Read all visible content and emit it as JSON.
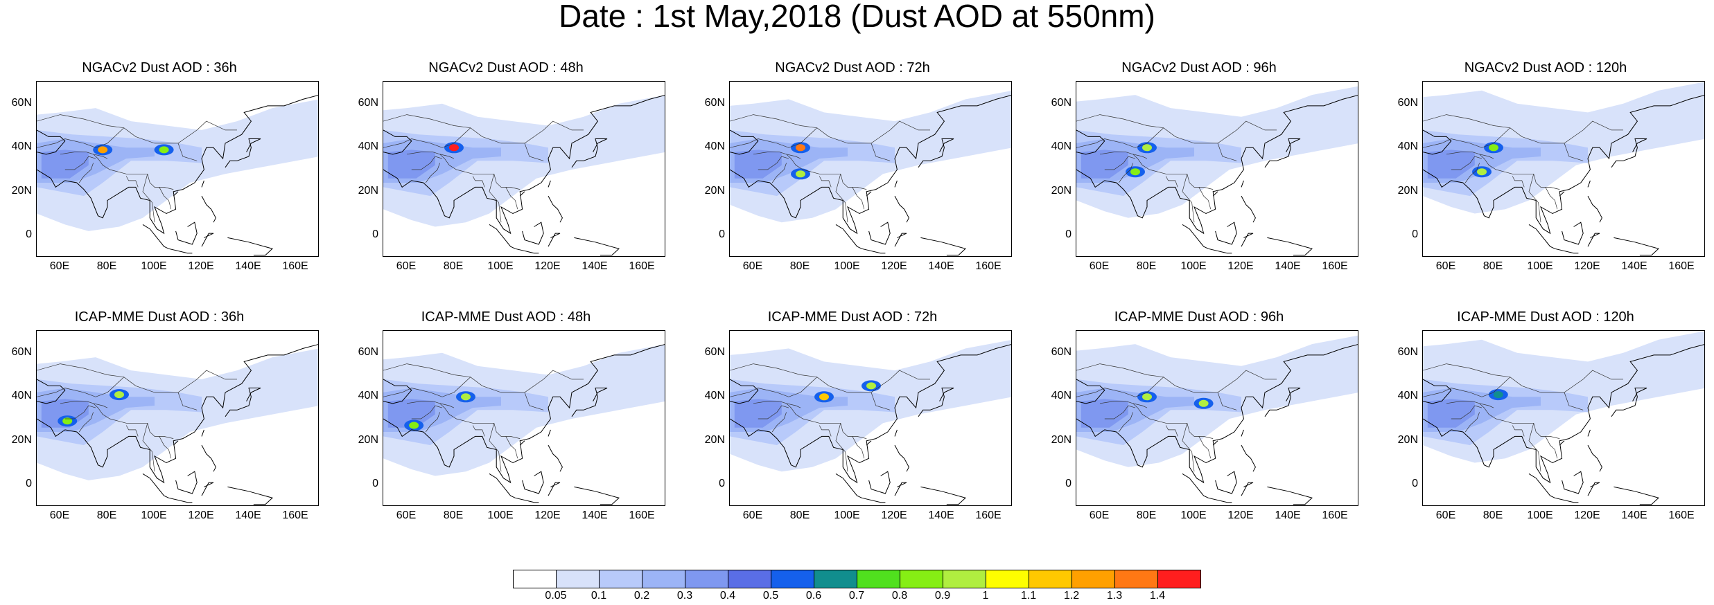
{
  "page": {
    "title": "Date : 1st May,2018 (Dust AOD at 550nm)"
  },
  "axes": {
    "lat_ticks": [
      "60N",
      "40N",
      "20N",
      "0"
    ],
    "lat_values": [
      60,
      40,
      20,
      0
    ],
    "lon_ticks": [
      "60E",
      "80E",
      "100E",
      "120E",
      "140E",
      "160E"
    ],
    "lon_values": [
      60,
      80,
      100,
      120,
      140,
      160
    ],
    "lon_range": [
      50,
      170
    ],
    "lat_range": [
      -10,
      70
    ]
  },
  "panels": [
    {
      "title": "NGACv2 Dust AOD : 36h",
      "hotspots": [
        {
          "lon": 78,
          "lat": 39,
          "level": 1.2
        },
        {
          "lon": 104,
          "lat": 39,
          "level": 0.8
        }
      ]
    },
    {
      "title": "NGACv2 Dust AOD : 48h",
      "hotspots": [
        {
          "lon": 80,
          "lat": 40,
          "level": 1.4
        }
      ]
    },
    {
      "title": "NGACv2 Dust AOD : 72h",
      "hotspots": [
        {
          "lon": 80,
          "lat": 40,
          "level": 1.3
        },
        {
          "lon": 80,
          "lat": 28,
          "level": 0.9
        }
      ]
    },
    {
      "title": "NGACv2 Dust AOD : 96h",
      "hotspots": [
        {
          "lon": 80,
          "lat": 40,
          "level": 0.9
        },
        {
          "lon": 75,
          "lat": 29,
          "level": 0.8
        }
      ]
    },
    {
      "title": "NGACv2 Dust AOD : 120h",
      "hotspots": [
        {
          "lon": 80,
          "lat": 40,
          "level": 0.8
        },
        {
          "lon": 75,
          "lat": 29,
          "level": 0.9
        }
      ]
    },
    {
      "title": "ICAP-MME Dust AOD : 36h",
      "hotspots": [
        {
          "lon": 85,
          "lat": 41,
          "level": 0.9
        },
        {
          "lon": 63,
          "lat": 29,
          "level": 0.8
        }
      ]
    },
    {
      "title": "ICAP-MME Dust AOD : 48h",
      "hotspots": [
        {
          "lon": 85,
          "lat": 40,
          "level": 0.9
        },
        {
          "lon": 63,
          "lat": 27,
          "level": 0.8
        }
      ]
    },
    {
      "title": "ICAP-MME Dust AOD : 72h",
      "hotspots": [
        {
          "lon": 90,
          "lat": 40,
          "level": 1.1
        },
        {
          "lon": 110,
          "lat": 45,
          "level": 0.9
        }
      ]
    },
    {
      "title": "ICAP-MME Dust AOD : 96h",
      "hotspots": [
        {
          "lon": 80,
          "lat": 40,
          "level": 0.9
        },
        {
          "lon": 104,
          "lat": 37,
          "level": 0.9
        }
      ]
    },
    {
      "title": "ICAP-MME Dust AOD : 120h",
      "hotspots": [
        {
          "lon": 82,
          "lat": 41,
          "level": 0.6
        }
      ]
    }
  ],
  "colorbar": {
    "labels": [
      "0.05",
      "0.1",
      "0.2",
      "0.3",
      "0.4",
      "0.5",
      "0.6",
      "0.7",
      "0.8",
      "0.9",
      "1",
      "1.1",
      "1.2",
      "1.3",
      "1.4"
    ],
    "colors": [
      "#ffffff",
      "#d8e2fa",
      "#b8cafa",
      "#9cb4f6",
      "#7f98f0",
      "#5a6ee6",
      "#1560ec",
      "#118e8e",
      "#50e01e",
      "#86ee14",
      "#b0ee40",
      "#fefe00",
      "#ffc800",
      "#ffa000",
      "#ff7814",
      "#ff1e1e"
    ]
  }
}
